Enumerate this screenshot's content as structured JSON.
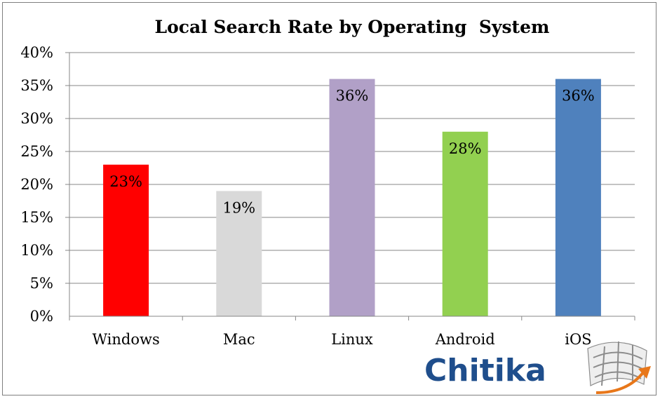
{
  "chart_data": {
    "type": "bar",
    "title": "Local Search Rate by Operating  System",
    "categories": [
      "Windows",
      "Mac",
      "Linux",
      "Android",
      "iOS"
    ],
    "values": [
      23,
      19,
      36,
      28,
      36
    ],
    "labels": [
      "23%",
      "19%",
      "36%",
      "28%",
      "36%"
    ],
    "colors": [
      "#ff0000",
      "#d9d9d9",
      "#b1a0c7",
      "#92d050",
      "#4f81bd"
    ],
    "ylim": [
      0,
      40
    ],
    "yticks": [
      "0%",
      "5%",
      "10%",
      "15%",
      "20%",
      "25%",
      "30%",
      "35%",
      "40%"
    ],
    "xlabel": "",
    "ylabel": "",
    "grid": true,
    "legend": "none"
  },
  "logo": {
    "text": "Chitika",
    "color": "#1f4e8c",
    "accent": "#e8771a"
  }
}
